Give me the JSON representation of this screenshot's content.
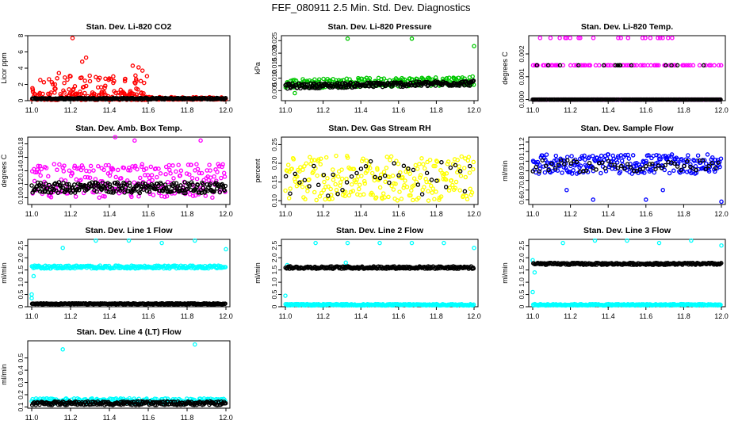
{
  "title": "FEF_080911  2.5 Min. Std. Dev. Diagnostics",
  "colors": {
    "red": "#ff0000",
    "green": "#00c800",
    "magenta": "#ff00ff",
    "yellow": "#ffff00",
    "blue": "#0000ff",
    "cyan": "#00ffff",
    "black": "#000000"
  },
  "chart_data": [
    {
      "type": "scatter",
      "title": "Stan. Dev. Li-820 CO2",
      "ylabel": "Licor ppm",
      "xlim": [
        11.0,
        12.0
      ],
      "ylim": [
        0,
        8
      ],
      "yticks": [
        0,
        2,
        4,
        6,
        8
      ],
      "ytick_labels": [
        "0",
        "2",
        "4",
        "6",
        "8"
      ],
      "xticks": [
        11.0,
        11.2,
        11.4,
        11.6,
        11.8,
        12.0
      ],
      "xtick_labels": [
        "11.0",
        "11.2",
        "11.4",
        "11.6",
        "11.8",
        "12.0"
      ],
      "series": [
        {
          "name": "scatter",
          "color": "#ff0000",
          "base": 0.6,
          "spread": 0.5,
          "bias": 2.2,
          "outliers": [
            [
              11.21,
              7.7
            ],
            [
              11.28,
              5.3
            ],
            [
              11.26,
              4.8
            ],
            [
              11.52,
              4.3
            ],
            [
              11.55,
              4.1
            ],
            [
              11.57,
              3.7
            ],
            [
              11.14,
              3.4
            ],
            [
              11.2,
              3.0
            ],
            [
              11.33,
              2.9
            ],
            [
              11.48,
              2.4
            ],
            [
              11.42,
              2.2
            ],
            [
              11.12,
              2.0
            ]
          ],
          "fade_after": 11.6,
          "fade_base": 0.3,
          "fade_spread": 0.15
        },
        {
          "name": "baseline",
          "color": "#000000",
          "base": 0.25,
          "spread": 0.1,
          "bias": 1
        }
      ]
    },
    {
      "type": "scatter",
      "title": "Stan. Dev. Li-820 Pressure",
      "ylabel": "kPa",
      "xlim": [
        11.0,
        12.0
      ],
      "ylim": [
        0.001,
        0.027
      ],
      "yticks": [
        0.005,
        0.01,
        0.015,
        0.02,
        0.025
      ],
      "ytick_labels": [
        "0.005",
        "0.010",
        "0.015",
        "0.020",
        "0.025"
      ],
      "xticks": [
        11.0,
        11.2,
        11.4,
        11.6,
        11.8,
        12.0
      ],
      "xtick_labels": [
        "11.0",
        "11.2",
        "11.4",
        "11.6",
        "11.8",
        "12.0"
      ],
      "series": [
        {
          "name": "scatter",
          "color": "#00c800",
          "base": 0.0078,
          "spread": 0.0018,
          "bias": 1,
          "outliers": [
            [
              11.33,
              0.0258
            ],
            [
              11.67,
              0.0258
            ],
            [
              12.0,
              0.0228
            ],
            [
              11.05,
              0.004
            ]
          ],
          "trend": 0.0012
        },
        {
          "name": "baseline",
          "color": "#000000",
          "base": 0.0068,
          "spread": 0.001,
          "bias": 1,
          "trend": 0.0012
        }
      ]
    },
    {
      "type": "scatter",
      "title": "Stan. Dev. Li-820 Temp.",
      "ylabel": "degrees C",
      "xlim": [
        11.0,
        12.0
      ],
      "ylim": [
        -5e-05,
        0.0028
      ],
      "yticks": [
        0,
        0.001,
        0.002
      ],
      "ytick_labels": [
        "0.000",
        "0.001",
        "0.002"
      ],
      "xticks": [
        11.0,
        11.2,
        11.4,
        11.6,
        11.8,
        12.0
      ],
      "xtick_labels": [
        "11.0",
        "11.2",
        "11.4",
        "11.6",
        "11.8",
        "12.0"
      ],
      "series": [
        {
          "name": "scatter",
          "color": "#ff00ff",
          "levels": [
            0,
            0.0015,
            0.0027
          ],
          "level_weights": [
            0.65,
            0.3,
            0.05
          ]
        },
        {
          "name": "baseline",
          "color": "#000000",
          "levels": [
            0,
            0.0015
          ],
          "level_weights": [
            0.95,
            0.05
          ]
        }
      ]
    },
    {
      "type": "scatter",
      "title": "Stan. Dev. Amb. Box Temp.",
      "ylabel": "degrees C",
      "xlim": [
        11.0,
        12.0
      ],
      "ylim": [
        0.09,
        0.19
      ],
      "yticks": [
        0.1,
        0.12,
        0.14,
        0.16,
        0.18
      ],
      "ytick_labels": [
        "0.10",
        "0.12",
        "0.14",
        "0.16",
        "0.18"
      ],
      "xticks": [
        11.0,
        11.2,
        11.4,
        11.6,
        11.8,
        12.0
      ],
      "xtick_labels": [
        "11.0",
        "11.2",
        "11.4",
        "11.6",
        "11.8",
        "12.0"
      ],
      "series": [
        {
          "name": "scatter",
          "color": "#ff00ff",
          "base": 0.125,
          "spread": 0.025,
          "bias": 1,
          "outliers": [
            [
              11.43,
              0.19
            ],
            [
              11.53,
              0.185
            ],
            [
              11.87,
              0.185
            ]
          ]
        },
        {
          "name": "baseline",
          "color": "#000000",
          "base": 0.115,
          "spread": 0.008,
          "bias": 1
        }
      ]
    },
    {
      "type": "scatter",
      "title": "Stan. Dev. Gas Stream RH",
      "ylabel": "percent",
      "xlim": [
        11.0,
        12.0
      ],
      "ylim": [
        0.09,
        0.27
      ],
      "yticks": [
        0.1,
        0.15,
        0.2,
        0.25
      ],
      "ytick_labels": [
        "0.10",
        "0.15",
        "0.20",
        "0.25"
      ],
      "xticks": [
        11.0,
        11.2,
        11.4,
        11.6,
        11.8,
        12.0
      ],
      "xtick_labels": [
        "11.0",
        "11.2",
        "11.4",
        "11.6",
        "11.8",
        "12.0"
      ],
      "series": [
        {
          "name": "scatter",
          "color": "#ffff00",
          "base": 0.16,
          "spread": 0.06,
          "bias": 1
        },
        {
          "name": "baseline",
          "color": "#000000",
          "base": 0.16,
          "spread": 0.05,
          "bias": 1,
          "sparse": 6
        }
      ]
    },
    {
      "type": "scatter",
      "title": "Stan. Dev. Sample Flow",
      "ylabel": "ml/min",
      "xlim": [
        11.0,
        12.0
      ],
      "ylim": [
        0.55,
        1.25
      ],
      "yticks": [
        0.6,
        0.7,
        0.8,
        0.9,
        1.0,
        1.1,
        1.2
      ],
      "ytick_labels": [
        "0.6",
        "0.7",
        "0.8",
        "0.9",
        "1.0",
        "1.1",
        "1.2"
      ],
      "xticks": [
        11.0,
        11.2,
        11.4,
        11.6,
        11.8,
        12.0
      ],
      "xtick_labels": [
        "11.0",
        "11.2",
        "11.4",
        "11.6",
        "11.8",
        "12.0"
      ],
      "series": [
        {
          "name": "scatter",
          "color": "#0000ff",
          "base": 0.97,
          "spread": 0.1,
          "bias": 1,
          "outliers": [
            [
              11.32,
              0.6
            ],
            [
              11.6,
              0.6
            ],
            [
              12.0,
              0.58
            ],
            [
              11.18,
              0.7
            ],
            [
              11.69,
              0.7
            ]
          ]
        },
        {
          "name": "baseline",
          "color": "#000000",
          "base": 0.95,
          "spread": 0.06,
          "bias": 1,
          "sparse": 4
        }
      ]
    },
    {
      "type": "scatter",
      "title": "Stan. Dev. Line 1 Flow",
      "ylabel": "ml/min",
      "xlim": [
        11.0,
        12.0
      ],
      "ylim": [
        0,
        2.75
      ],
      "yticks": [
        0,
        0.5,
        1.0,
        1.5,
        2.0,
        2.5
      ],
      "ytick_labels": [
        "0",
        "0.5",
        "1.0",
        "1.5",
        "2.0",
        "2.5"
      ],
      "xticks": [
        11.0,
        11.2,
        11.4,
        11.6,
        11.8,
        12.0
      ],
      "xtick_labels": [
        "11.0",
        "11.2",
        "11.4",
        "11.6",
        "11.8",
        "12.0"
      ],
      "series": [
        {
          "name": "scatter",
          "color": "#00ffff",
          "base": 1.62,
          "spread": 0.06,
          "bias": 1,
          "outliers": [
            [
              11.16,
              2.4
            ],
            [
              11.33,
              2.7
            ],
            [
              11.5,
              2.7
            ],
            [
              11.67,
              2.6
            ],
            [
              11.84,
              2.7
            ],
            [
              12.0,
              2.35
            ],
            [
              11.0,
              0.5
            ],
            [
              11.0,
              0.35
            ],
            [
              11.01,
              1.25
            ]
          ]
        },
        {
          "name": "baseline",
          "color": "#000000",
          "base": 0.12,
          "spread": 0.02,
          "bias": 1
        }
      ]
    },
    {
      "type": "scatter",
      "title": "Stan. Dev. Line 2 Flow",
      "ylabel": "ml/min",
      "xlim": [
        11.0,
        12.0
      ],
      "ylim": [
        0,
        2.75
      ],
      "yticks": [
        0,
        0.5,
        1.0,
        1.5,
        2.0,
        2.5
      ],
      "ytick_labels": [
        "0",
        "0.5",
        "1.0",
        "1.5",
        "2.0",
        "2.5"
      ],
      "xticks": [
        11.0,
        11.2,
        11.4,
        11.6,
        11.8,
        12.0
      ],
      "xtick_labels": [
        "11.0",
        "11.2",
        "11.4",
        "11.6",
        "11.8",
        "12.0"
      ],
      "series": [
        {
          "name": "scatter",
          "color": "#00ffff",
          "base": 0.08,
          "spread": 0.03,
          "bias": 1,
          "outliers": [
            [
              11.16,
              2.6
            ],
            [
              11.33,
              2.6
            ],
            [
              11.5,
              2.6
            ],
            [
              11.67,
              2.6
            ],
            [
              11.84,
              2.6
            ],
            [
              12.0,
              2.4
            ],
            [
              11.0,
              0.45
            ],
            [
              11.01,
              1.7
            ],
            [
              11.32,
              1.8
            ]
          ]
        },
        {
          "name": "baseline",
          "color": "#000000",
          "base": 1.6,
          "spread": 0.05,
          "bias": 1
        }
      ]
    },
    {
      "type": "scatter",
      "title": "Stan. Dev. Line 3 Flow",
      "ylabel": "ml/min",
      "xlim": [
        11.0,
        12.0
      ],
      "ylim": [
        0,
        2.75
      ],
      "yticks": [
        0,
        0.5,
        1.0,
        1.5,
        2.0,
        2.5
      ],
      "ytick_labels": [
        "0",
        "0.5",
        "1.0",
        "1.5",
        "2.0",
        "2.5"
      ],
      "xticks": [
        11.0,
        11.2,
        11.4,
        11.6,
        11.8,
        12.0
      ],
      "xtick_labels": [
        "11.0",
        "11.2",
        "11.4",
        "11.6",
        "11.8",
        "12.0"
      ],
      "series": [
        {
          "name": "scatter",
          "color": "#00ffff",
          "base": 0.08,
          "spread": 0.03,
          "bias": 1,
          "outliers": [
            [
              11.16,
              2.6
            ],
            [
              11.33,
              2.7
            ],
            [
              11.5,
              2.7
            ],
            [
              11.67,
              2.6
            ],
            [
              11.84,
              2.7
            ],
            [
              12.0,
              2.5
            ],
            [
              11.0,
              0.6
            ],
            [
              11.01,
              1.4
            ],
            [
              11.0,
              1.9
            ]
          ]
        },
        {
          "name": "baseline",
          "color": "#000000",
          "base": 1.75,
          "spread": 0.04,
          "bias": 1
        }
      ]
    },
    {
      "type": "scatter",
      "title": "Stan. Dev. Line 4 (LT) Flow",
      "ylabel": "ml/min",
      "xlim": [
        11.0,
        12.0
      ],
      "ylim": [
        0.09,
        0.64
      ],
      "yticks": [
        0.1,
        0.2,
        0.3,
        0.4,
        0.5
      ],
      "ytick_labels": [
        "0.1",
        "0.2",
        "0.3",
        "0.4",
        "0.5"
      ],
      "xticks": [
        11.0,
        11.2,
        11.4,
        11.6,
        11.8,
        12.0
      ],
      "xtick_labels": [
        "11.0",
        "11.2",
        "11.4",
        "11.6",
        "11.8",
        "12.0"
      ],
      "series": [
        {
          "name": "scatter",
          "color": "#00ffff",
          "base": 0.15,
          "spread": 0.02,
          "bias": 1,
          "outliers": [
            [
              11.16,
              0.57
            ],
            [
              11.84,
              0.61
            ]
          ]
        },
        {
          "name": "baseline",
          "color": "#000000",
          "base": 0.13,
          "spread": 0.015,
          "bias": 1
        }
      ]
    }
  ]
}
